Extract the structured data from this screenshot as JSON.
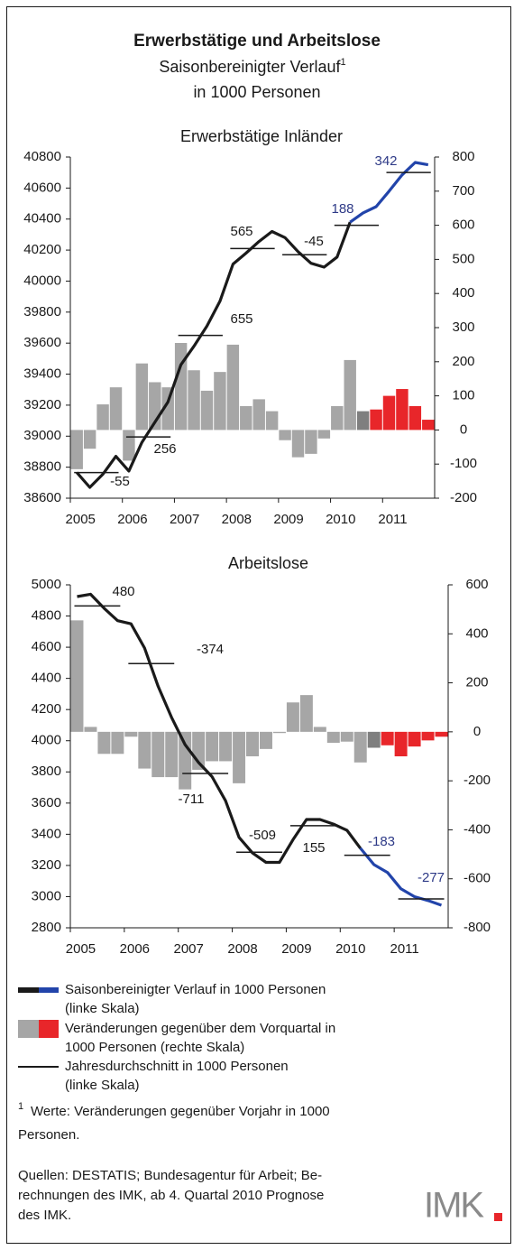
{
  "title": "Erwerbstätige und Arbeitslose",
  "subtitle": "Saisonbereinigter Verlauf",
  "subtitle_sup": "1",
  "subtitle2": "in 1000 Personen",
  "chart_data": [
    {
      "type": "combo",
      "title": "Erwerbstätige Inländer",
      "categories": [
        "2005",
        null,
        null,
        null,
        "2006",
        null,
        null,
        null,
        "2007",
        null,
        null,
        null,
        "2008",
        null,
        null,
        null,
        "2009",
        null,
        null,
        null,
        "2010",
        null,
        null,
        null,
        "2011",
        null,
        null,
        null
      ],
      "ylim": [
        38600,
        40800
      ],
      "yticks": [
        38600,
        38800,
        39000,
        39200,
        39400,
        39600,
        39800,
        40000,
        40200,
        40400,
        40600,
        40800
      ],
      "y2lim": [
        -200,
        800
      ],
      "y2ticks": [
        -200,
        -100,
        0,
        100,
        200,
        300,
        400,
        500,
        600,
        700,
        800
      ],
      "series": [
        {
          "type": "bar",
          "axis": "y2",
          "values": [
            -115,
            -55,
            75,
            125,
            -90,
            195,
            140,
            125,
            255,
            175,
            115,
            170,
            250,
            70,
            90,
            55,
            -30,
            -80,
            -70,
            -25,
            70,
            205,
            55,
            60,
            100,
            120,
            70,
            30
          ],
          "colors": [
            "#a6a6a6",
            "#a6a6a6",
            "#a6a6a6",
            "#a6a6a6",
            "#a6a6a6",
            "#a6a6a6",
            "#a6a6a6",
            "#a6a6a6",
            "#a6a6a6",
            "#a6a6a6",
            "#a6a6a6",
            "#a6a6a6",
            "#a6a6a6",
            "#a6a6a6",
            "#a6a6a6",
            "#a6a6a6",
            "#a6a6a6",
            "#a6a6a6",
            "#a6a6a6",
            "#a6a6a6",
            "#a6a6a6",
            "#a6a6a6",
            "#7f7f7f",
            "#e8262a",
            "#e8262a",
            "#e8262a",
            "#e8262a",
            "#e8262a"
          ]
        },
        {
          "type": "line",
          "color": "#1a1a1a",
          "values": [
            38765,
            38670,
            38755,
            38870,
            38775,
            38960,
            39090,
            39220,
            39460,
            39580,
            39710,
            39870,
            40110,
            40180,
            40255,
            40320,
            40280,
            40190,
            40115,
            40090,
            40155,
            40380,
            null,
            null,
            null,
            null,
            null,
            null
          ]
        },
        {
          "type": "line",
          "color": "#2244aa",
          "values": [
            null,
            null,
            null,
            null,
            null,
            null,
            null,
            null,
            null,
            null,
            null,
            null,
            null,
            null,
            null,
            null,
            null,
            null,
            null,
            null,
            null,
            40380,
            40440,
            40480,
            40580,
            40685,
            40765,
            40750
          ]
        }
      ],
      "annual_averages": [
        38765,
        38995,
        39650,
        40210,
        40170,
        40360,
        40700
      ],
      "annual_changes": [
        -55,
        256,
        655,
        565,
        -45,
        188,
        342
      ],
      "annual_change_colors": [
        "#1a1a1a",
        "#1a1a1a",
        "#1a1a1a",
        "#1a1a1a",
        "#1a1a1a",
        "#2e3a87",
        "#2e3a87"
      ]
    },
    {
      "type": "combo",
      "title": "Arbeitslose",
      "categories": [
        "2005",
        null,
        null,
        null,
        "2006",
        null,
        null,
        null,
        "2007",
        null,
        null,
        null,
        "2008",
        null,
        null,
        null,
        "2009",
        null,
        null,
        null,
        "2010",
        null,
        null,
        null,
        "2011",
        null,
        null,
        null
      ],
      "ylim": [
        2800,
        5000
      ],
      "yticks": [
        2800,
        3000,
        3200,
        3400,
        3600,
        3800,
        4000,
        4200,
        4400,
        4600,
        4800,
        5000
      ],
      "y2lim": [
        -800,
        600
      ],
      "y2ticks": [
        -800,
        -600,
        -400,
        -200,
        0,
        200,
        400,
        600
      ],
      "series": [
        {
          "type": "bar",
          "axis": "y2",
          "values": [
            455,
            20,
            -90,
            -90,
            -20,
            -150,
            -185,
            -185,
            -235,
            -155,
            -120,
            -120,
            -210,
            -100,
            -70,
            -5,
            120,
            150,
            20,
            -45,
            -40,
            -125,
            -65,
            -55,
            -100,
            -60,
            -35,
            -20
          ],
          "colors": [
            "#a6a6a6",
            "#a6a6a6",
            "#a6a6a6",
            "#a6a6a6",
            "#a6a6a6",
            "#a6a6a6",
            "#a6a6a6",
            "#a6a6a6",
            "#a6a6a6",
            "#a6a6a6",
            "#a6a6a6",
            "#a6a6a6",
            "#a6a6a6",
            "#a6a6a6",
            "#a6a6a6",
            "#a6a6a6",
            "#a6a6a6",
            "#a6a6a6",
            "#a6a6a6",
            "#a6a6a6",
            "#a6a6a6",
            "#a6a6a6",
            "#7f7f7f",
            "#e8262a",
            "#e8262a",
            "#e8262a",
            "#e8262a",
            "#e8262a"
          ]
        },
        {
          "type": "line",
          "color": "#1a1a1a",
          "values": [
            4925,
            4940,
            4850,
            4770,
            4750,
            4595,
            4350,
            4150,
            3975,
            3860,
            3770,
            3615,
            3380,
            3280,
            3220,
            3220,
            3365,
            3495,
            3495,
            3465,
            3425,
            3310,
            null,
            null,
            null,
            null,
            null,
            null
          ]
        },
        {
          "type": "line",
          "color": "#2244aa",
          "values": [
            null,
            null,
            null,
            null,
            null,
            null,
            null,
            null,
            null,
            null,
            null,
            null,
            null,
            null,
            null,
            null,
            null,
            null,
            null,
            null,
            null,
            3310,
            3205,
            3155,
            3050,
            3000,
            2975,
            2945
          ]
        }
      ],
      "annual_averages": [
        4865,
        4495,
        3790,
        3285,
        3455,
        3265,
        2985
      ],
      "annual_changes": [
        480,
        -374,
        -711,
        -509,
        155,
        -183,
        -277
      ],
      "annual_change_colors": [
        "#1a1a1a",
        "#1a1a1a",
        "#1a1a1a",
        "#1a1a1a",
        "#1a1a1a",
        "#2e3a87",
        "#2e3a87"
      ]
    }
  ],
  "legend": [
    {
      "lines": [
        "Saisonbereinigter Verlauf in 1000 Personen",
        "(linke Skala)"
      ],
      "colors": [
        "#1a1a1a",
        "#2244aa"
      ]
    },
    {
      "lines": [
        "Veränderungen gegenüber dem Vorquartal in",
        "1000 Personen (rechte Skala)"
      ],
      "colors": [
        "#a6a6a6",
        "#e8262a"
      ]
    },
    {
      "lines": [
        "Jahresdurchschnitt in 1000 Personen",
        "(linke Skala)"
      ],
      "colors": [
        "#1a1a1a"
      ]
    }
  ],
  "footnote_mark": "1",
  "footnote": [
    "Werte: Veränderungen gegenüber Vorjahr in 1000",
    "Personen."
  ],
  "source": [
    "Quellen: DESTATIS; Bundesagentur für Arbeit; Be-",
    "rechnungen des IMK, ab 4. Quartal 2010 Prognose",
    "des IMK."
  ],
  "logo": "IMK"
}
